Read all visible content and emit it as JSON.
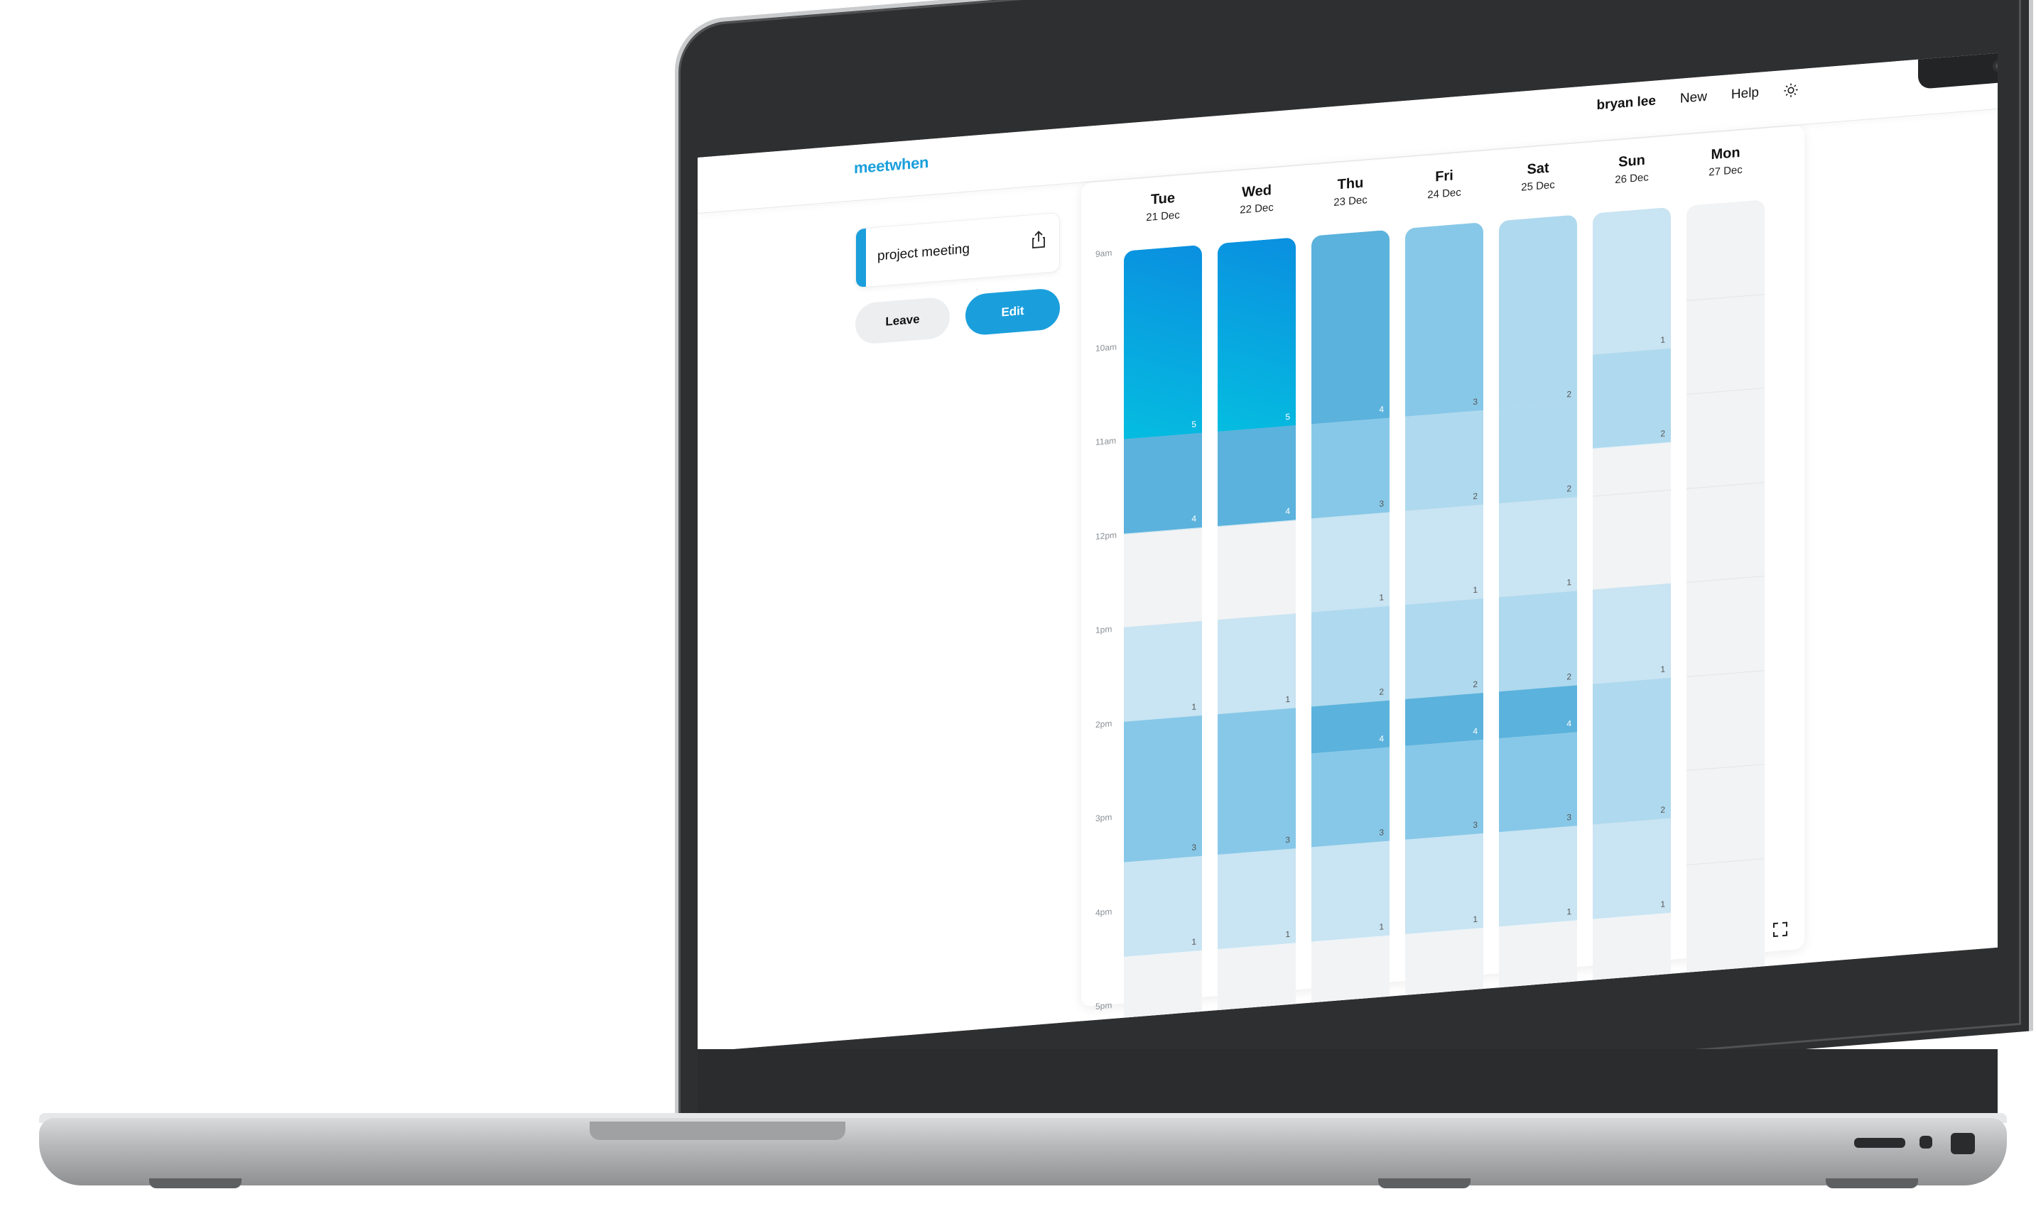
{
  "app": {
    "logo": "meetwhen",
    "nav": {
      "user": "bryan lee",
      "new": "New",
      "help": "Help",
      "theme_icon": "sun-icon"
    }
  },
  "event": {
    "name": "project meeting",
    "share_icon": "share-icon",
    "leave_label": "Leave",
    "edit_label": "Edit"
  },
  "calendar": {
    "time_labels": [
      "9am",
      "10am",
      "11am",
      "12pm",
      "1pm",
      "2pm",
      "3pm",
      "4pm",
      "5pm"
    ],
    "days": [
      {
        "name": "Tue",
        "date": "21 Dec"
      },
      {
        "name": "Wed",
        "date": "22 Dec"
      },
      {
        "name": "Thu",
        "date": "23 Dec"
      },
      {
        "name": "Fri",
        "date": "24 Dec"
      },
      {
        "name": "Sat",
        "date": "25 Dec"
      },
      {
        "name": "Sun",
        "date": "26 Dec"
      },
      {
        "name": "Mon",
        "date": "27 Dec"
      }
    ],
    "availability": [
      [
        {
          "start": 9,
          "end": 11,
          "count": 5
        },
        {
          "start": 11,
          "end": 12,
          "count": 4
        },
        {
          "start": 13,
          "end": 14,
          "count": 1
        },
        {
          "start": 14,
          "end": 15.5,
          "count": 3
        },
        {
          "start": 15.5,
          "end": 16.5,
          "count": 1
        }
      ],
      [
        {
          "start": 9,
          "end": 11,
          "count": 5
        },
        {
          "start": 11,
          "end": 12,
          "count": 4
        },
        {
          "start": 13,
          "end": 14,
          "count": 1
        },
        {
          "start": 14,
          "end": 15.5,
          "count": 3
        },
        {
          "start": 15.5,
          "end": 16.5,
          "count": 1
        }
      ],
      [
        {
          "start": 9,
          "end": 11,
          "count": 4
        },
        {
          "start": 11,
          "end": 12,
          "count": 3
        },
        {
          "start": 12,
          "end": 13,
          "count": 1
        },
        {
          "start": 13,
          "end": 14,
          "count": 2
        },
        {
          "start": 14,
          "end": 14.5,
          "count": 4
        },
        {
          "start": 14.5,
          "end": 15.5,
          "count": 3
        },
        {
          "start": 15.5,
          "end": 16.5,
          "count": 1
        }
      ],
      [
        {
          "start": 9,
          "end": 11,
          "count": 3
        },
        {
          "start": 11,
          "end": 12,
          "count": 2
        },
        {
          "start": 12,
          "end": 13,
          "count": 1
        },
        {
          "start": 13,
          "end": 14,
          "count": 2
        },
        {
          "start": 14,
          "end": 14.5,
          "count": 4
        },
        {
          "start": 14.5,
          "end": 15.5,
          "count": 3
        },
        {
          "start": 15.5,
          "end": 16.5,
          "count": 1
        }
      ],
      [
        {
          "start": 9,
          "end": 11,
          "count": 2
        },
        {
          "start": 11,
          "end": 12,
          "count": 2
        },
        {
          "start": 12,
          "end": 13,
          "count": 1
        },
        {
          "start": 13,
          "end": 14,
          "count": 2
        },
        {
          "start": 14,
          "end": 14.5,
          "count": 4
        },
        {
          "start": 14.5,
          "end": 15.5,
          "count": 3
        },
        {
          "start": 15.5,
          "end": 16.5,
          "count": 1
        }
      ],
      [
        {
          "start": 9,
          "end": 10.5,
          "count": 1
        },
        {
          "start": 10.5,
          "end": 11.5,
          "count": 2
        },
        {
          "start": 13,
          "end": 14,
          "count": 1
        },
        {
          "start": 14,
          "end": 15.5,
          "count": 2
        },
        {
          "start": 15.5,
          "end": 16.5,
          "count": 1
        }
      ],
      []
    ],
    "colors": {
      "1": "#c9e4f2",
      "2": "#afd9ee",
      "3": "#87c8e8",
      "4": "#5bb2dc",
      "5": "#0aa6e0"
    },
    "fullscreen_icon": "fullscreen-icon"
  }
}
